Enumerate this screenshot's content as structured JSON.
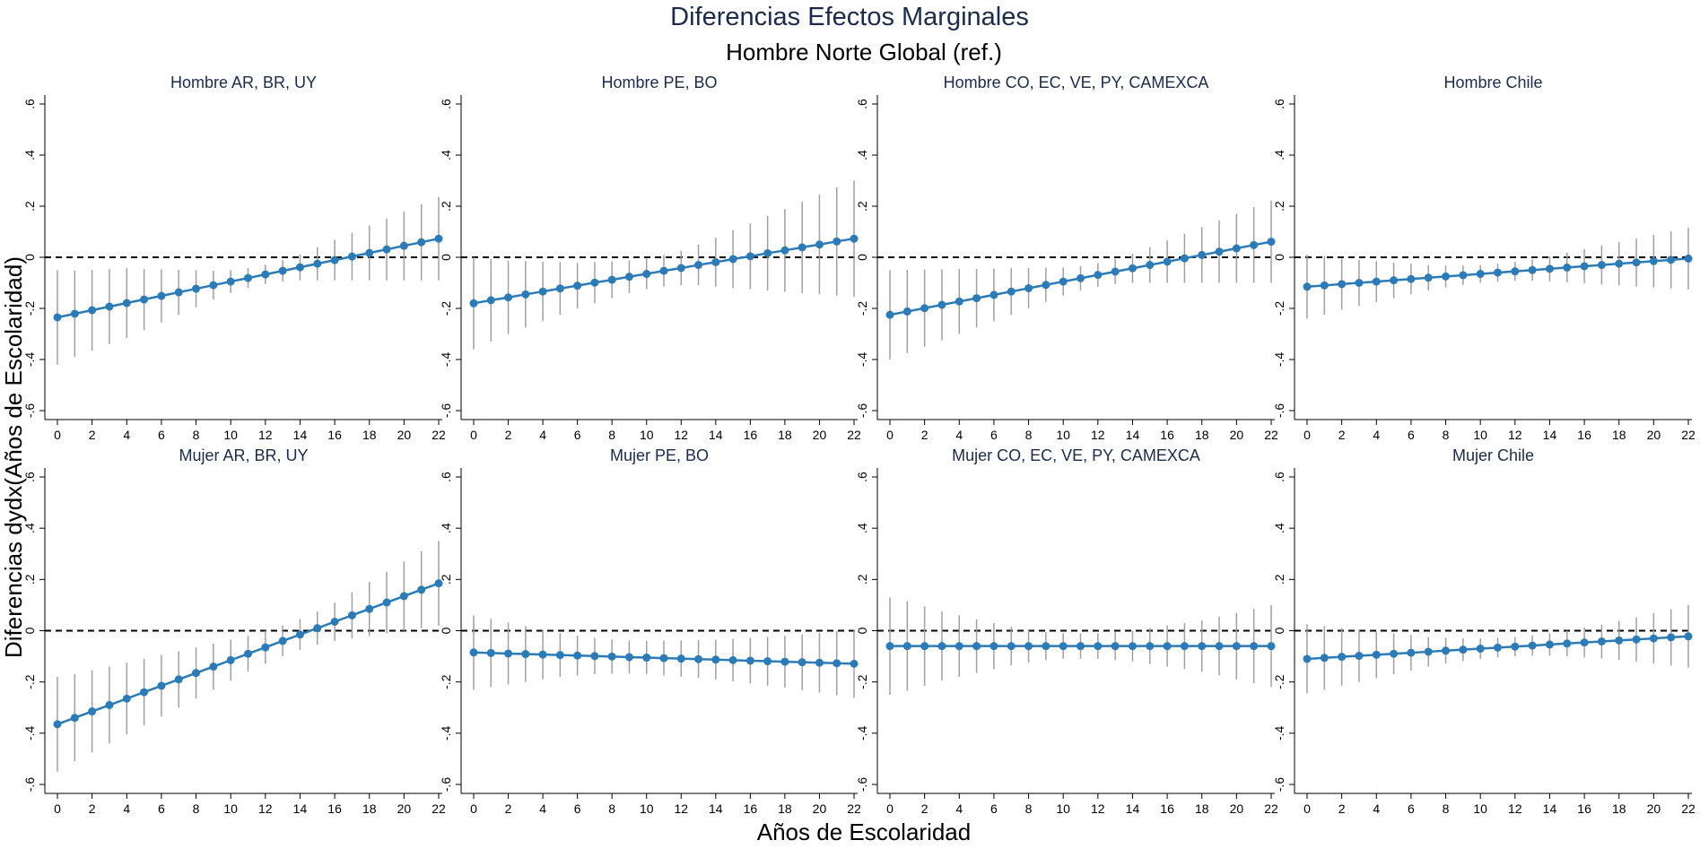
{
  "title": "Diferencias Efectos Marginales",
  "subtitle": "Hombre Norte Global (ref.)",
  "xlabel": "Años de Escolaridad",
  "ylabel": "Diferencias dydx(Años de Escolaridad)",
  "colors": {
    "series": "#2b7bb9",
    "ci": "#a0a0a0",
    "title": "#1a2b4c"
  },
  "chart_data": [
    {
      "type": "line",
      "title": "Hombre AR, BR, UY",
      "x": [
        0,
        1,
        2,
        3,
        4,
        5,
        6,
        7,
        8,
        9,
        10,
        11,
        12,
        13,
        14,
        15,
        16,
        17,
        18,
        19,
        20,
        21,
        22
      ],
      "y": [
        -0.235,
        -0.221,
        -0.207,
        -0.193,
        -0.179,
        -0.165,
        -0.151,
        -0.137,
        -0.123,
        -0.109,
        -0.095,
        -0.081,
        -0.067,
        -0.053,
        -0.039,
        -0.025,
        -0.011,
        0.003,
        0.017,
        0.031,
        0.045,
        0.059,
        0.073
      ],
      "lo": [
        -0.42,
        -0.39,
        -0.365,
        -0.34,
        -0.315,
        -0.285,
        -0.255,
        -0.225,
        -0.195,
        -0.165,
        -0.14,
        -0.12,
        -0.105,
        -0.095,
        -0.09,
        -0.09,
        -0.09,
        -0.09,
        -0.09,
        -0.09,
        -0.09,
        -0.09,
        -0.09
      ],
      "hi": [
        -0.05,
        -0.052,
        -0.049,
        -0.046,
        -0.043,
        -0.045,
        -0.047,
        -0.049,
        -0.051,
        -0.053,
        -0.05,
        -0.042,
        -0.029,
        -0.011,
        0.012,
        0.04,
        0.068,
        0.096,
        0.124,
        0.152,
        0.18,
        0.208,
        0.236
      ],
      "xlim": [
        0,
        22
      ],
      "ylim": [
        -0.6,
        0.6
      ],
      "xticks": [
        0,
        2,
        4,
        6,
        8,
        10,
        12,
        14,
        16,
        18,
        20,
        22
      ],
      "yticks": [
        0.6,
        0.4,
        0.2,
        0,
        -0.2,
        -0.4,
        -0.6
      ],
      "ytick_labels": [
        ".6",
        ".4",
        ".2",
        "0",
        "-.2",
        "-.4",
        "-.6"
      ]
    },
    {
      "type": "line",
      "title": "Hombre PE, BO",
      "x": [
        0,
        1,
        2,
        3,
        4,
        5,
        6,
        7,
        8,
        9,
        10,
        11,
        12,
        13,
        14,
        15,
        16,
        17,
        18,
        19,
        20,
        21,
        22
      ],
      "y": [
        -0.18,
        -0.168,
        -0.157,
        -0.145,
        -0.134,
        -0.122,
        -0.111,
        -0.099,
        -0.088,
        -0.076,
        -0.065,
        -0.053,
        -0.042,
        -0.03,
        -0.019,
        -0.007,
        0.004,
        0.016,
        0.027,
        0.039,
        0.05,
        0.062,
        0.073
      ],
      "lo": [
        -0.36,
        -0.33,
        -0.3,
        -0.275,
        -0.25,
        -0.225,
        -0.2,
        -0.18,
        -0.16,
        -0.14,
        -0.125,
        -0.115,
        -0.11,
        -0.11,
        -0.115,
        -0.12,
        -0.125,
        -0.13,
        -0.135,
        -0.14,
        -0.145,
        -0.15,
        -0.155
      ],
      "hi": [
        0.0,
        -0.006,
        -0.014,
        -0.015,
        -0.018,
        -0.019,
        -0.022,
        -0.018,
        -0.016,
        -0.012,
        -0.005,
        0.009,
        0.026,
        0.05,
        0.077,
        0.106,
        0.133,
        0.162,
        0.189,
        0.218,
        0.245,
        0.274,
        0.301
      ],
      "xlim": [
        0,
        22
      ],
      "ylim": [
        -0.6,
        0.6
      ],
      "xticks": [
        0,
        2,
        4,
        6,
        8,
        10,
        12,
        14,
        16,
        18,
        20,
        22
      ],
      "yticks": [
        0.6,
        0.4,
        0.2,
        0,
        -0.2,
        -0.4,
        -0.6
      ],
      "ytick_labels": [
        ".6",
        ".4",
        ".2",
        "0",
        "-.2",
        "-.4",
        "-.6"
      ]
    },
    {
      "type": "line",
      "title": "Hombre CO, EC, VE, PY, CAMEXCA",
      "x": [
        0,
        1,
        2,
        3,
        4,
        5,
        6,
        7,
        8,
        9,
        10,
        11,
        12,
        13,
        14,
        15,
        16,
        17,
        18,
        19,
        20,
        21,
        22
      ],
      "y": [
        -0.225,
        -0.212,
        -0.199,
        -0.186,
        -0.173,
        -0.16,
        -0.147,
        -0.134,
        -0.121,
        -0.108,
        -0.095,
        -0.082,
        -0.069,
        -0.056,
        -0.043,
        -0.03,
        -0.017,
        -0.004,
        0.009,
        0.022,
        0.035,
        0.048,
        0.061
      ],
      "lo": [
        -0.4,
        -0.375,
        -0.35,
        -0.325,
        -0.3,
        -0.275,
        -0.25,
        -0.225,
        -0.2,
        -0.175,
        -0.15,
        -0.13,
        -0.115,
        -0.105,
        -0.1,
        -0.1,
        -0.1,
        -0.1,
        -0.1,
        -0.1,
        -0.1,
        -0.1,
        -0.1
      ],
      "hi": [
        -0.05,
        -0.049,
        -0.048,
        -0.047,
        -0.046,
        -0.045,
        -0.044,
        -0.043,
        -0.042,
        -0.041,
        -0.04,
        -0.034,
        -0.023,
        -0.007,
        0.014,
        0.04,
        0.066,
        0.092,
        0.118,
        0.144,
        0.17,
        0.196,
        0.222
      ],
      "xlim": [
        0,
        22
      ],
      "ylim": [
        -0.6,
        0.6
      ],
      "xticks": [
        0,
        2,
        4,
        6,
        8,
        10,
        12,
        14,
        16,
        18,
        20,
        22
      ],
      "yticks": [
        0.6,
        0.4,
        0.2,
        0,
        -0.2,
        -0.4,
        -0.6
      ],
      "ytick_labels": [
        ".6",
        ".4",
        ".2",
        "0",
        "-.2",
        "-.4",
        "-.6"
      ]
    },
    {
      "type": "line",
      "title": "Hombre Chile",
      "x": [
        0,
        1,
        2,
        3,
        4,
        5,
        6,
        7,
        8,
        9,
        10,
        11,
        12,
        13,
        14,
        15,
        16,
        17,
        18,
        19,
        20,
        21,
        22
      ],
      "y": [
        -0.115,
        -0.11,
        -0.105,
        -0.1,
        -0.095,
        -0.09,
        -0.085,
        -0.08,
        -0.075,
        -0.07,
        -0.065,
        -0.06,
        -0.055,
        -0.05,
        -0.045,
        -0.04,
        -0.035,
        -0.03,
        -0.025,
        -0.02,
        -0.015,
        -0.01,
        -0.005
      ],
      "lo": [
        -0.24,
        -0.225,
        -0.205,
        -0.19,
        -0.175,
        -0.16,
        -0.145,
        -0.13,
        -0.118,
        -0.108,
        -0.1,
        -0.095,
        -0.092,
        -0.092,
        -0.094,
        -0.098,
        -0.102,
        -0.106,
        -0.11,
        -0.114,
        -0.118,
        -0.122,
        -0.126
      ],
      "hi": [
        0.01,
        0.005,
        -0.005,
        -0.01,
        -0.015,
        -0.02,
        -0.025,
        -0.03,
        -0.032,
        -0.032,
        -0.03,
        -0.025,
        -0.018,
        -0.008,
        0.004,
        0.018,
        0.032,
        0.046,
        0.06,
        0.074,
        0.088,
        0.102,
        0.116
      ],
      "xlim": [
        0,
        22
      ],
      "ylim": [
        -0.6,
        0.6
      ],
      "xticks": [
        0,
        2,
        4,
        6,
        8,
        10,
        12,
        14,
        16,
        18,
        20,
        22
      ],
      "yticks": [
        0.6,
        0.4,
        0.2,
        0,
        -0.2,
        -0.4,
        -0.6
      ],
      "ytick_labels": [
        ".6",
        ".4",
        ".2",
        "0",
        "-.2",
        "-.4",
        "-.6"
      ]
    },
    {
      "type": "line",
      "title": "Mujer AR, BR, UY",
      "x": [
        0,
        1,
        2,
        3,
        4,
        5,
        6,
        7,
        8,
        9,
        10,
        11,
        12,
        13,
        14,
        15,
        16,
        17,
        18,
        19,
        20,
        21,
        22
      ],
      "y": [
        -0.365,
        -0.34,
        -0.315,
        -0.29,
        -0.265,
        -0.24,
        -0.215,
        -0.19,
        -0.165,
        -0.14,
        -0.115,
        -0.09,
        -0.065,
        -0.04,
        -0.015,
        0.01,
        0.035,
        0.06,
        0.085,
        0.11,
        0.135,
        0.16,
        0.185
      ],
      "lo": [
        -0.55,
        -0.51,
        -0.475,
        -0.44,
        -0.405,
        -0.37,
        -0.335,
        -0.3,
        -0.265,
        -0.23,
        -0.195,
        -0.16,
        -0.13,
        -0.1,
        -0.075,
        -0.055,
        -0.04,
        -0.03,
        -0.02,
        -0.01,
        0.0,
        0.01,
        0.02
      ],
      "hi": [
        -0.18,
        -0.17,
        -0.155,
        -0.14,
        -0.125,
        -0.11,
        -0.095,
        -0.08,
        -0.065,
        -0.05,
        -0.035,
        -0.02,
        0.0,
        0.02,
        0.045,
        0.075,
        0.11,
        0.15,
        0.19,
        0.23,
        0.27,
        0.31,
        0.35
      ],
      "xlim": [
        0,
        22
      ],
      "ylim": [
        -0.6,
        0.6
      ],
      "xticks": [
        0,
        2,
        4,
        6,
        8,
        10,
        12,
        14,
        16,
        18,
        20,
        22
      ],
      "yticks": [
        0.6,
        0.4,
        0.2,
        0,
        -0.2,
        -0.4,
        -0.6
      ],
      "ytick_labels": [
        ".6",
        ".4",
        ".2",
        "0",
        "-.2",
        "-.4",
        "-.6"
      ]
    },
    {
      "type": "line",
      "title": "Mujer PE, BO",
      "x": [
        0,
        1,
        2,
        3,
        4,
        5,
        6,
        7,
        8,
        9,
        10,
        11,
        12,
        13,
        14,
        15,
        16,
        17,
        18,
        19,
        20,
        21,
        22
      ],
      "y": [
        -0.085,
        -0.087,
        -0.089,
        -0.091,
        -0.093,
        -0.095,
        -0.097,
        -0.099,
        -0.101,
        -0.103,
        -0.105,
        -0.107,
        -0.109,
        -0.111,
        -0.113,
        -0.115,
        -0.117,
        -0.119,
        -0.121,
        -0.123,
        -0.125,
        -0.127,
        -0.129
      ],
      "lo": [
        -0.23,
        -0.22,
        -0.21,
        -0.2,
        -0.19,
        -0.18,
        -0.175,
        -0.17,
        -0.168,
        -0.168,
        -0.17,
        -0.175,
        -0.18,
        -0.185,
        -0.19,
        -0.198,
        -0.206,
        -0.214,
        -0.222,
        -0.232,
        -0.242,
        -0.252,
        -0.262
      ],
      "hi": [
        0.06,
        0.046,
        0.032,
        0.018,
        0.004,
        -0.01,
        -0.019,
        -0.028,
        -0.034,
        -0.038,
        -0.04,
        -0.039,
        -0.038,
        -0.037,
        -0.036,
        -0.032,
        -0.028,
        -0.024,
        -0.02,
        -0.014,
        -0.008,
        -0.002,
        0.004
      ],
      "xlim": [
        0,
        22
      ],
      "ylim": [
        -0.6,
        0.6
      ],
      "xticks": [
        0,
        2,
        4,
        6,
        8,
        10,
        12,
        14,
        16,
        18,
        20,
        22
      ],
      "yticks": [
        0.6,
        0.4,
        0.2,
        0,
        -0.2,
        -0.4,
        -0.6
      ],
      "ytick_labels": [
        ".6",
        ".4",
        ".2",
        "0",
        "-.2",
        "-.4",
        "-.6"
      ]
    },
    {
      "type": "line",
      "title": "Mujer CO, EC, VE, PY, CAMEXCA",
      "x": [
        0,
        1,
        2,
        3,
        4,
        5,
        6,
        7,
        8,
        9,
        10,
        11,
        12,
        13,
        14,
        15,
        16,
        17,
        18,
        19,
        20,
        21,
        22
      ],
      "y": [
        -0.06,
        -0.06,
        -0.06,
        -0.06,
        -0.06,
        -0.06,
        -0.06,
        -0.06,
        -0.06,
        -0.06,
        -0.06,
        -0.06,
        -0.06,
        -0.06,
        -0.06,
        -0.06,
        -0.06,
        -0.06,
        -0.06,
        -0.06,
        -0.06,
        -0.06,
        -0.06
      ],
      "lo": [
        -0.25,
        -0.235,
        -0.215,
        -0.195,
        -0.18,
        -0.165,
        -0.15,
        -0.135,
        -0.125,
        -0.115,
        -0.11,
        -0.11,
        -0.11,
        -0.115,
        -0.12,
        -0.13,
        -0.14,
        -0.15,
        -0.16,
        -0.175,
        -0.19,
        -0.205,
        -0.22
      ],
      "hi": [
        0.13,
        0.115,
        0.095,
        0.075,
        0.06,
        0.045,
        0.03,
        0.015,
        0.005,
        -0.005,
        -0.01,
        -0.01,
        -0.01,
        -0.005,
        0.0,
        0.01,
        0.02,
        0.03,
        0.04,
        0.055,
        0.07,
        0.085,
        0.1
      ],
      "xlim": [
        0,
        22
      ],
      "ylim": [
        -0.6,
        0.6
      ],
      "xticks": [
        0,
        2,
        4,
        6,
        8,
        10,
        12,
        14,
        16,
        18,
        20,
        22
      ],
      "yticks": [
        0.6,
        0.4,
        0.2,
        0,
        -0.2,
        -0.4,
        -0.6
      ],
      "ytick_labels": [
        ".6",
        ".4",
        ".2",
        "0",
        "-.2",
        "-.4",
        "-.6"
      ]
    },
    {
      "type": "line",
      "title": "Mujer Chile",
      "x": [
        0,
        1,
        2,
        3,
        4,
        5,
        6,
        7,
        8,
        9,
        10,
        11,
        12,
        13,
        14,
        15,
        16,
        17,
        18,
        19,
        20,
        21,
        22
      ],
      "y": [
        -0.11,
        -0.106,
        -0.102,
        -0.098,
        -0.094,
        -0.09,
        -0.086,
        -0.082,
        -0.078,
        -0.074,
        -0.07,
        -0.066,
        -0.062,
        -0.058,
        -0.054,
        -0.05,
        -0.046,
        -0.042,
        -0.038,
        -0.034,
        -0.03,
        -0.026,
        -0.022
      ],
      "lo": [
        -0.245,
        -0.23,
        -0.215,
        -0.2,
        -0.185,
        -0.17,
        -0.155,
        -0.14,
        -0.128,
        -0.118,
        -0.11,
        -0.105,
        -0.1,
        -0.098,
        -0.098,
        -0.1,
        -0.104,
        -0.108,
        -0.114,
        -0.12,
        -0.128,
        -0.136,
        -0.144
      ],
      "hi": [
        0.025,
        0.018,
        0.011,
        0.004,
        -0.003,
        -0.01,
        -0.017,
        -0.024,
        -0.028,
        -0.03,
        -0.03,
        -0.027,
        -0.024,
        -0.018,
        -0.01,
        0.0,
        0.012,
        0.024,
        0.038,
        0.052,
        0.068,
        0.084,
        0.1
      ],
      "xlim": [
        0,
        22
      ],
      "ylim": [
        -0.6,
        0.6
      ],
      "xticks": [
        0,
        2,
        4,
        6,
        8,
        10,
        12,
        14,
        16,
        18,
        20,
        22
      ],
      "yticks": [
        0.6,
        0.4,
        0.2,
        0,
        -0.2,
        -0.4,
        -0.6
      ],
      "ytick_labels": [
        ".6",
        ".4",
        ".2",
        "0",
        "-.2",
        "-.4",
        "-.6"
      ]
    }
  ]
}
